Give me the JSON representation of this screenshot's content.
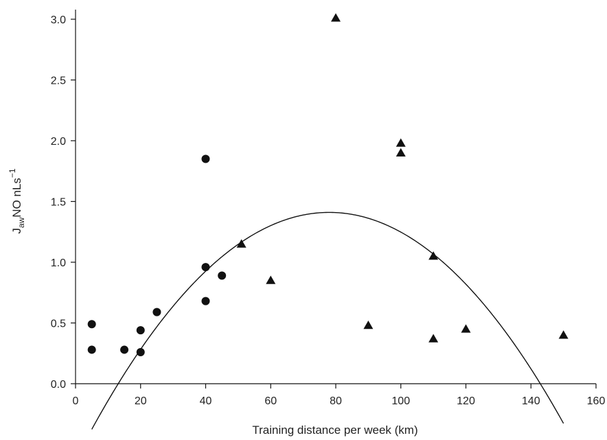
{
  "chart_data": {
    "type": "scatter",
    "title": "",
    "xlabel": "Training distance per week (km)",
    "ylabel": {
      "main": "J",
      "sub": "aw",
      "rest": "NO nLs",
      "sup": "−1"
    },
    "xlim": [
      0,
      160
    ],
    "ylim": [
      0,
      3.0
    ],
    "xticks": [
      0,
      20,
      40,
      60,
      80,
      100,
      120,
      140,
      160
    ],
    "yticks": [
      "0.0",
      "0.5",
      "1.0",
      "1.5",
      "2.0",
      "2.5",
      "3.0"
    ],
    "grid": false,
    "legend": "none",
    "series": [
      {
        "marker": "circle",
        "color": "#111111",
        "points": [
          [
            5,
            0.49
          ],
          [
            5,
            0.28
          ],
          [
            15,
            0.28
          ],
          [
            20,
            0.44
          ],
          [
            20,
            0.26
          ],
          [
            25,
            0.59
          ],
          [
            40,
            1.85
          ],
          [
            40,
            0.96
          ],
          [
            40,
            0.68
          ],
          [
            45,
            0.89
          ]
        ]
      },
      {
        "marker": "triangle",
        "color": "#111111",
        "points": [
          [
            51,
            1.15
          ],
          [
            60,
            0.85
          ],
          [
            80,
            3.01
          ],
          [
            90,
            0.48
          ],
          [
            100,
            1.98
          ],
          [
            100,
            1.9
          ],
          [
            110,
            1.05
          ],
          [
            110,
            0.37
          ],
          [
            120,
            0.45
          ],
          [
            150,
            0.4
          ]
        ]
      }
    ],
    "fit_curve": {
      "type": "quadratic",
      "x_range": [
        5,
        150
      ],
      "vertex": [
        78,
        1.41
      ],
      "a": -0.000335,
      "color": "#111111"
    }
  }
}
